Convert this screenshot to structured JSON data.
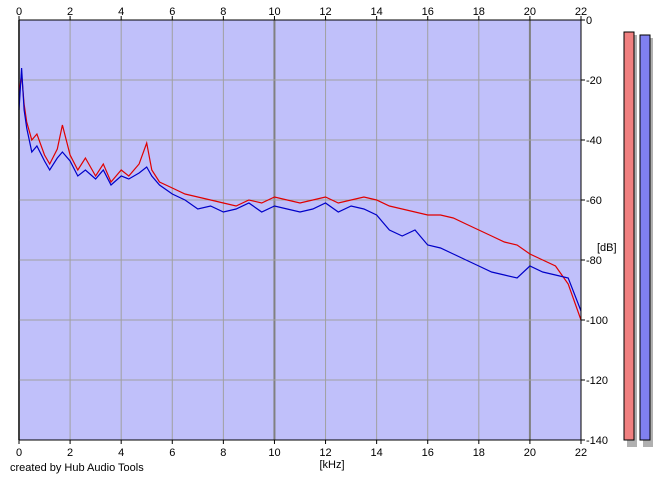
{
  "credit": "created by Hub Audio Tools",
  "colors": {
    "background": "#ffffff",
    "plot_fill": "#c0c0fa",
    "grid": "#a0a0a0",
    "grid_major": "#808080",
    "series_red": "#e00000",
    "series_blue": "#0000c8",
    "meter_red": "#f08080",
    "meter_blue": "#8080f0"
  },
  "chart_data": {
    "type": "line",
    "title": "",
    "xlabel": "[kHz]",
    "ylabel": "[dB]",
    "xlim": [
      0,
      22
    ],
    "ylim": [
      -140,
      0
    ],
    "xticks": [
      0,
      2,
      4,
      6,
      8,
      10,
      12,
      14,
      16,
      18,
      20,
      22
    ],
    "yticks": [
      0,
      -20,
      -40,
      -60,
      -80,
      -100,
      -120,
      -140
    ],
    "grid": true,
    "legend": "none",
    "series": [
      {
        "color": "#e00000",
        "x": [
          0,
          0.1,
          0.2,
          0.3,
          0.5,
          0.7,
          1.0,
          1.2,
          1.5,
          1.7,
          2.0,
          2.3,
          2.6,
          3.0,
          3.3,
          3.6,
          4.0,
          4.3,
          4.7,
          5.0,
          5.2,
          5.5,
          6.0,
          6.5,
          7.0,
          7.5,
          8.0,
          8.5,
          9.0,
          9.5,
          10.0,
          10.5,
          11.0,
          11.5,
          12.0,
          12.5,
          13.0,
          13.5,
          14.0,
          14.5,
          15.0,
          15.5,
          16.0,
          16.5,
          17.0,
          17.5,
          18.0,
          18.5,
          19.0,
          19.5,
          20.0,
          20.5,
          21.0,
          21.5,
          22.0
        ],
        "y": [
          -25,
          -18,
          -28,
          -34,
          -40,
          -38,
          -45,
          -48,
          -43,
          -35,
          -45,
          -50,
          -46,
          -52,
          -48,
          -54,
          -50,
          -52,
          -48,
          -41,
          -50,
          -54,
          -56,
          -58,
          -59,
          -60,
          -61,
          -62,
          -60,
          -61,
          -59,
          -60,
          -61,
          -60,
          -59,
          -61,
          -60,
          -59,
          -60,
          -62,
          -63,
          -64,
          -65,
          -65,
          -66,
          -68,
          -70,
          -72,
          -74,
          -75,
          -78,
          -80,
          -82,
          -88,
          -100
        ]
      },
      {
        "color": "#0000c8",
        "x": [
          0,
          0.1,
          0.2,
          0.3,
          0.5,
          0.7,
          1.0,
          1.2,
          1.5,
          1.7,
          2.0,
          2.3,
          2.6,
          3.0,
          3.3,
          3.6,
          4.0,
          4.3,
          4.7,
          5.0,
          5.2,
          5.5,
          6.0,
          6.5,
          7.0,
          7.5,
          8.0,
          8.5,
          9.0,
          9.5,
          10.0,
          10.5,
          11.0,
          11.5,
          12.0,
          12.5,
          13.0,
          13.5,
          14.0,
          14.5,
          15.0,
          15.5,
          16.0,
          16.5,
          17.0,
          17.5,
          18.0,
          18.5,
          19.0,
          19.5,
          20.0,
          20.5,
          21.0,
          21.5,
          22.0
        ],
        "y": [
          -30,
          -16,
          -30,
          -36,
          -44,
          -42,
          -47,
          -50,
          -46,
          -44,
          -47,
          -52,
          -50,
          -53,
          -50,
          -55,
          -52,
          -53,
          -51,
          -49,
          -52,
          -55,
          -58,
          -60,
          -63,
          -62,
          -64,
          -63,
          -61,
          -64,
          -62,
          -63,
          -64,
          -63,
          -61,
          -64,
          -62,
          -63,
          -65,
          -70,
          -72,
          -70,
          -75,
          -76,
          -78,
          -80,
          -82,
          -84,
          -85,
          -86,
          -82,
          -84,
          -85,
          -86,
          -97
        ]
      }
    ],
    "meters": {
      "ylim": [
        -140,
        0
      ],
      "channels": [
        {
          "color": "#f08080",
          "level_db": -4
        },
        {
          "color": "#8080f0",
          "level_db": -5
        }
      ]
    }
  }
}
